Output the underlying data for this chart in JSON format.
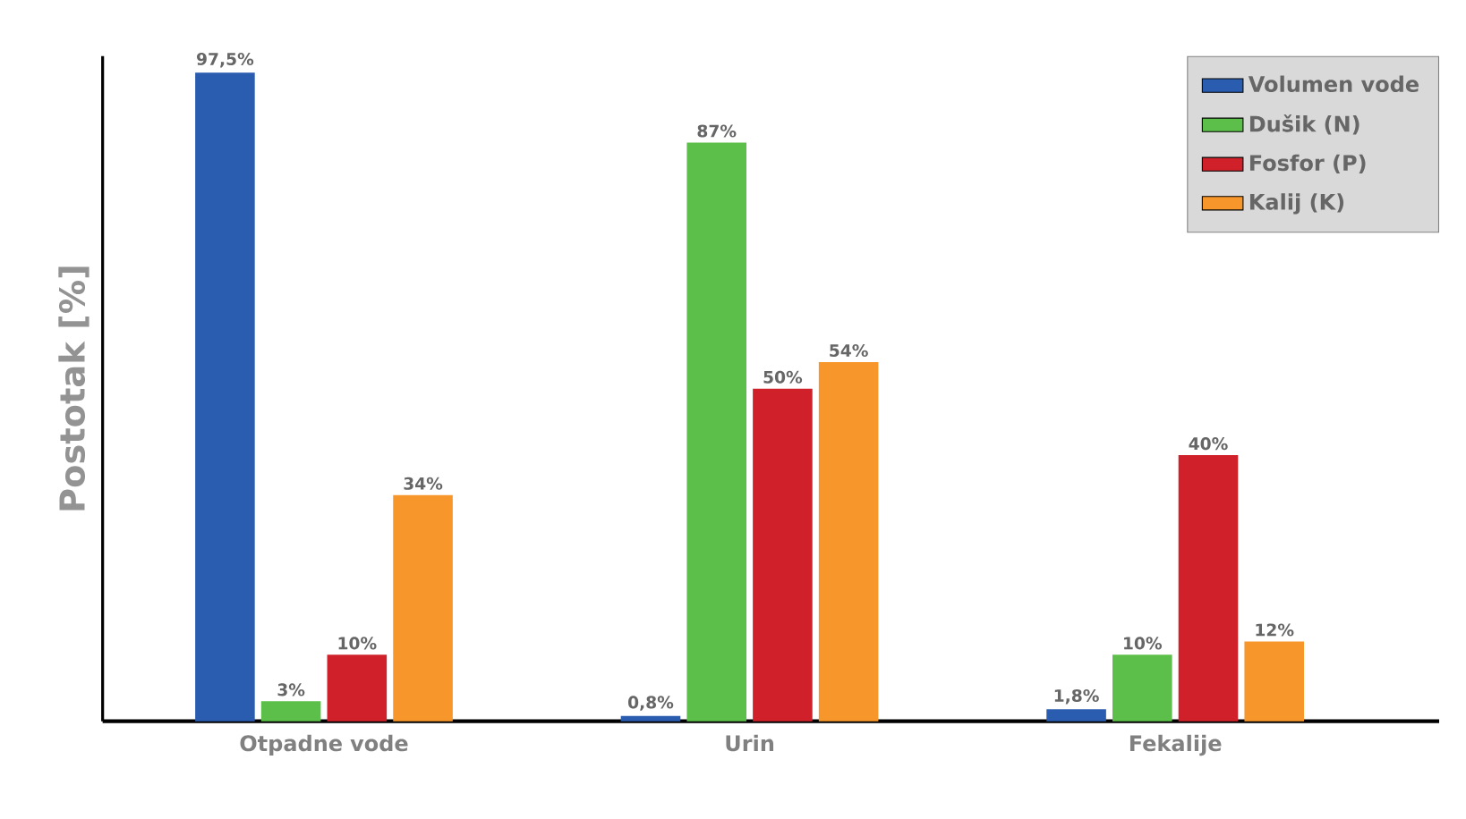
{
  "chart_data": {
    "type": "bar",
    "ylabel": "Postotak [%]",
    "categories": [
      "Otpadne vode",
      "Urin",
      "Fekalije"
    ],
    "ylim": [
      0,
      100
    ],
    "tick_labels": "x",
    "legend": "top right",
    "grid": false,
    "series": [
      {
        "name": "Volumen vode",
        "color": "#2a5db0",
        "values": [
          97.5,
          0.8,
          1.8
        ],
        "value_labels": [
          "97,5%",
          "0,8%",
          "1,8%"
        ]
      },
      {
        "name": "Dušik (N)",
        "color": "#5cbf4a",
        "values": [
          3,
          87,
          10
        ],
        "value_labels": [
          "3%",
          "87%",
          "10%"
        ]
      },
      {
        "name": "Fosfor (P)",
        "color": "#d0202a",
        "values": [
          10,
          50,
          40
        ],
        "value_labels": [
          "10%",
          "50%",
          "40%"
        ]
      },
      {
        "name": "Kalij (K)",
        "color": "#f7962a",
        "values": [
          34,
          54,
          12
        ],
        "value_labels": [
          "34%",
          "54%",
          "12%"
        ]
      }
    ]
  }
}
